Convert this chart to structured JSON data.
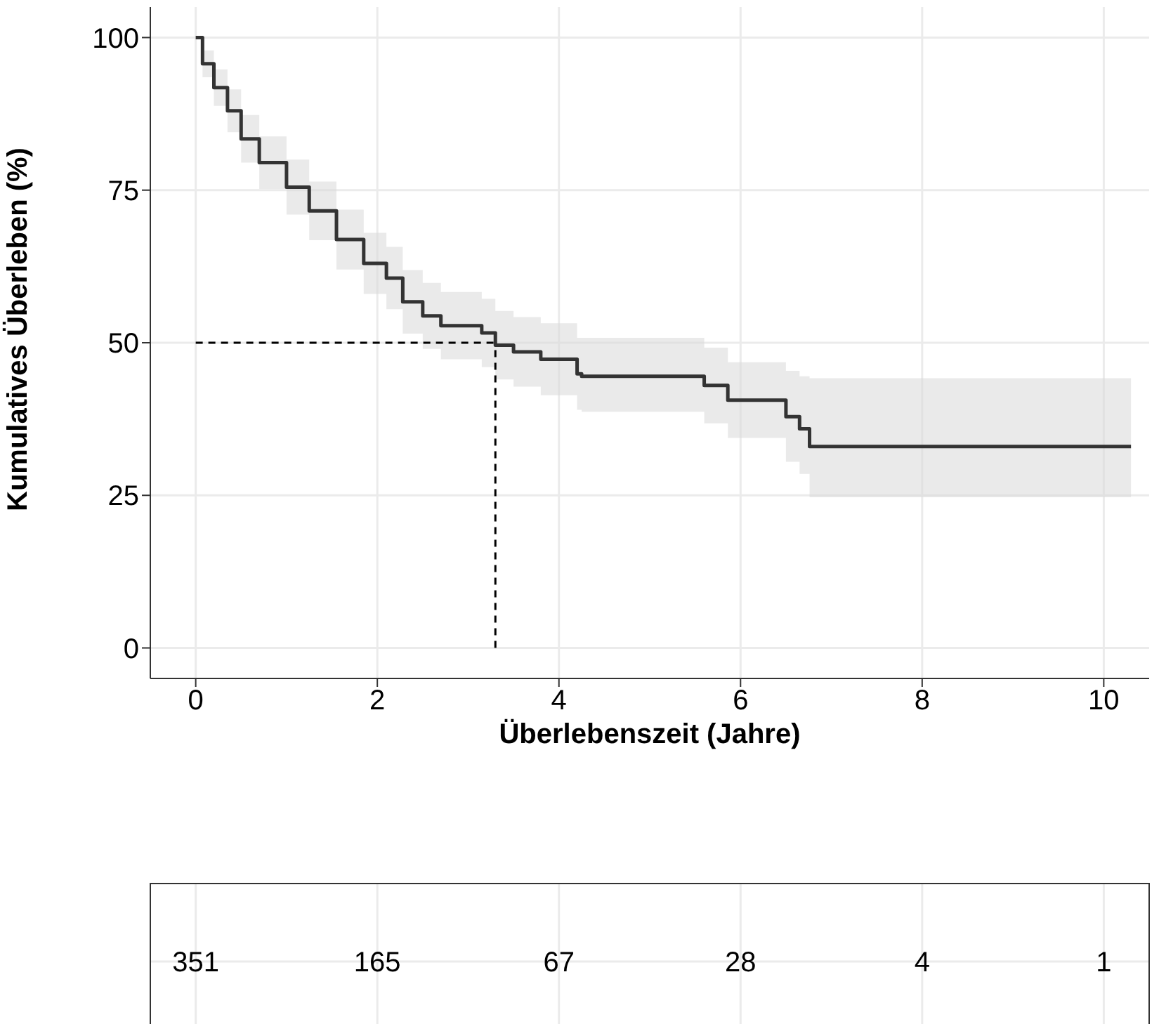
{
  "chart_data": [
    {
      "type": "step",
      "xlabel": "Überlebenszeit (Jahre)",
      "ylabel": "Kumulatives Überleben (%)",
      "series": [
        {
          "color": "#333333",
          "x": [
            0,
            0.075,
            0.2,
            0.35,
            0.5,
            0.7,
            1.0,
            1.25,
            1.55,
            1.85,
            2.1,
            2.28,
            2.5,
            2.7,
            3.15,
            3.3,
            3.5,
            3.8,
            4.2,
            4.25,
            5.6,
            5.86,
            6.5,
            6.65,
            6.76,
            10.3
          ],
          "values": [
            100,
            95.7,
            91.8,
            88,
            83.4,
            79.5,
            75.5,
            71.6,
            66.9,
            63,
            60.6,
            56.7,
            54.4,
            52.8,
            51.6,
            49.6,
            48.5,
            47.3,
            44.9,
            44.5,
            43,
            40.6,
            37.9,
            35.9,
            33,
            33
          ],
          "lower": [
            100,
            93.5,
            88.8,
            84.5,
            79.5,
            75.2,
            71,
            66.8,
            62,
            58,
            55.5,
            51.5,
            49,
            47.3,
            46,
            44,
            42.8,
            41.4,
            39,
            38.7,
            36.8,
            34.4,
            30.5,
            28.5,
            24.7,
            24.7
          ],
          "upper": [
            100,
            97.9,
            94.8,
            91.5,
            87.3,
            83.8,
            80,
            76.4,
            71.8,
            68,
            65.7,
            61.9,
            59.8,
            58.3,
            57.2,
            55.2,
            54.2,
            53.2,
            50.8,
            50.8,
            49.2,
            46.8,
            45.4,
            44.5,
            44.2,
            44.2
          ]
        }
      ],
      "xlim": [
        -0.5,
        10.5
      ],
      "ylim": [
        -5,
        105
      ],
      "xticks": [
        0,
        2,
        4,
        6,
        8,
        10
      ],
      "yticks": [
        0,
        25,
        50,
        75,
        100
      ],
      "grid": true,
      "legend": false,
      "ref_lines": [
        {
          "axis": "y",
          "value": 50,
          "line_style": "dashed",
          "color": "#000000"
        },
        {
          "axis": "x",
          "value": 3.3,
          "line_style": "dashed",
          "color": "#000000"
        }
      ]
    },
    {
      "type": "other",
      "categories": [
        null,
        null,
        null,
        null,
        null,
        null
      ],
      "values": [
        351,
        165,
        67,
        28,
        4,
        1
      ],
      "data_labels": true
    }
  ]
}
